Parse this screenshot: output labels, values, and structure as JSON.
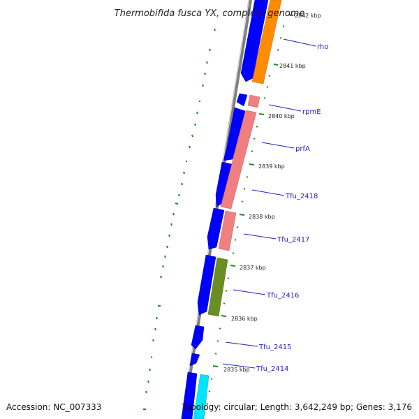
{
  "title": "Thermobifida fusca YX, complete genome",
  "accession": "Accession: NC_007333",
  "topology": "Topology: circular; Length: 3,642,249 bp; Genes: 3,176",
  "ticks": [
    "2842 kbp",
    "2841 kbp",
    "2840 kbp",
    "2839 kbp",
    "2838 kbp",
    "2837 kbp",
    "2836 kbp",
    "2835 kbp"
  ],
  "genes": [
    {
      "label": "rho",
      "color": "#ff8c00"
    },
    {
      "label": "rpmE",
      "color": "#f08080"
    },
    {
      "label": "prfA",
      "color": "#f08080"
    },
    {
      "label": "Tfu_2418",
      "color": "#f08080"
    },
    {
      "label": "Tfu_2417",
      "color": "#f08080"
    },
    {
      "label": "Tfu_2416",
      "color": "#6b8e23"
    },
    {
      "label": "Tfu_2415",
      "color": "#0000ff"
    },
    {
      "label": "Tfu_2414",
      "color": "#0000ff"
    }
  ],
  "colors": {
    "backbone": "#808080",
    "cds_blue": "#0000ff",
    "orange": "#ff8c00",
    "salmon": "#f08080",
    "olive": "#6b8e23",
    "cyan": "#00e5ff",
    "tick": "#228b22",
    "label_line": "#2020c8"
  }
}
